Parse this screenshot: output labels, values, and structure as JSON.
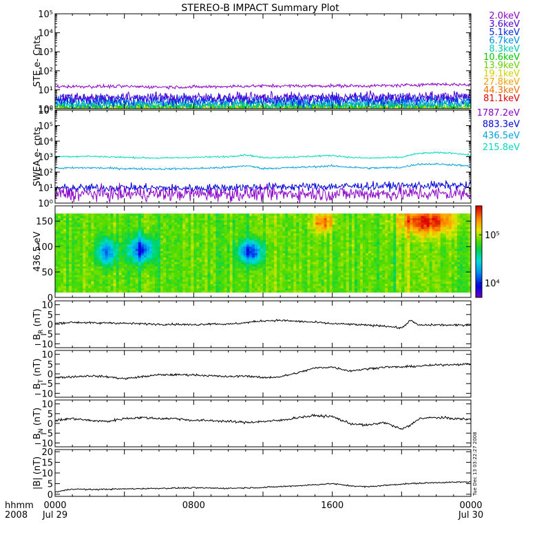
{
  "title": "STEREO-B IMPACT Summary Plot",
  "time_axis": {
    "label_line1": "hhmm",
    "label_line2": "2008",
    "ticks": [
      {
        "hours": 0,
        "label": "0000",
        "date": "Jul 29"
      },
      {
        "hours": 8,
        "label": "0800",
        "date": ""
      },
      {
        "hours": 16,
        "label": "1600",
        "date": ""
      },
      {
        "hours": 24,
        "label": "0000",
        "date": "Jul 30"
      }
    ]
  },
  "side_stamp": "Tue Dec 13 03:22:27 2008",
  "colors": {
    "ste": [
      "#8b00c8",
      "#5000d8",
      "#0028e0",
      "#0090e0",
      "#00c8b0",
      "#00c800",
      "#68d000",
      "#d0d000",
      "#f0a000",
      "#f07000",
      "#e00000"
    ],
    "swea": [
      "#8b00c8",
      "#0000d8",
      "#00a0e0",
      "#00d8c0"
    ]
  },
  "chart_data": [
    {
      "id": "ste",
      "type": "line",
      "ylabel": "STE e- Cnts",
      "yscale": "log",
      "ylim": [
        1,
        100000
      ],
      "yticks": [
        {
          "v": 1,
          "label": "10⁰"
        },
        {
          "v": 10,
          "label": "10¹"
        },
        {
          "v": 100,
          "label": "10²"
        },
        {
          "v": 1000,
          "label": "10³"
        },
        {
          "v": 10000,
          "label": "10⁴"
        },
        {
          "v": 100000,
          "label": "10⁵"
        }
      ],
      "legend": [
        "2.0keV",
        "3.6keV",
        "5.1keV",
        "6.7keV",
        "8.3keV",
        "10.6keV",
        "13.9keV",
        "19.1keV",
        "27.8keV",
        "44.3keV",
        "81.1keV"
      ],
      "series": [
        {
          "name": "2.0keV",
          "x": [
            0,
            2,
            4,
            6,
            8,
            10,
            12,
            14,
            16,
            18,
            20,
            22,
            24
          ],
          "y": [
            15,
            15,
            15,
            14,
            14,
            15,
            16,
            16,
            16,
            16,
            17,
            20,
            18
          ],
          "noise": 0.08
        },
        {
          "name": "3.6keV",
          "x": [
            0,
            4,
            8,
            12,
            16,
            20,
            24
          ],
          "y": [
            4,
            4,
            3.8,
            4,
            4,
            4.2,
            4.5
          ],
          "noise": 0.25
        },
        {
          "name": "5.1keV",
          "x": [
            0,
            4,
            8,
            12,
            16,
            20,
            24
          ],
          "y": [
            3,
            3,
            3,
            3,
            3,
            3.2,
            3.5
          ],
          "noise": 0.3
        },
        {
          "name": "6.7keV",
          "x": [
            0,
            4,
            8,
            12,
            16,
            20,
            24
          ],
          "y": [
            2.2,
            2.2,
            2.1,
            2.2,
            2.2,
            2.3,
            2.4
          ],
          "noise": 0.3
        },
        {
          "name": "8.3keV",
          "x": [
            0,
            12,
            24
          ],
          "y": [
            1.7,
            1.7,
            1.8
          ],
          "noise": 0.25
        },
        {
          "name": "10.6keV",
          "x": [
            0,
            12,
            24
          ],
          "y": [
            1.4,
            1.4,
            1.5
          ],
          "noise": 0.2
        },
        {
          "name": "13.9keV",
          "x": [
            0,
            12,
            24
          ],
          "y": [
            1.2,
            1.2,
            1.2
          ],
          "noise": 0.15
        },
        {
          "name": "19.1keV",
          "x": [
            0,
            12,
            24
          ],
          "y": [
            1.1,
            1.1,
            1.1
          ],
          "noise": 0.1
        },
        {
          "name": "27.8keV",
          "x": [
            0,
            12,
            24
          ],
          "y": [
            1.05,
            1.05,
            1.05
          ],
          "noise": 0.05
        },
        {
          "name": "44.3keV",
          "x": [
            0,
            12,
            24
          ],
          "y": [
            1.02,
            1.02,
            1.02
          ],
          "noise": 0.03
        },
        {
          "name": "81.1keV",
          "x": [
            0,
            12,
            24
          ],
          "y": [
            1.0,
            1.0,
            1.0
          ],
          "noise": 0.02
        }
      ]
    },
    {
      "id": "swea",
      "type": "line",
      "ylabel": "SWEA e- cnts",
      "yscale": "log",
      "ylim": [
        1,
        1000000
      ],
      "yticks": [
        {
          "v": 1,
          "label": "10⁰"
        },
        {
          "v": 10,
          "label": "10¹"
        },
        {
          "v": 100,
          "label": "10²"
        },
        {
          "v": 1000,
          "label": "10³"
        },
        {
          "v": 10000,
          "label": "10⁴"
        },
        {
          "v": 100000,
          "label": "10⁵"
        },
        {
          "v": 1000000,
          "label": "10⁶"
        }
      ],
      "legend": [
        "1787.2eV",
        "883.3eV",
        "436.5eV",
        "215.8eV"
      ],
      "series": [
        {
          "name": "1787.2eV",
          "x": [
            0,
            6,
            12,
            18,
            24
          ],
          "y": [
            4,
            4,
            4,
            4,
            4
          ],
          "noise": 0.45
        },
        {
          "name": "883.3eV",
          "x": [
            0,
            4,
            8,
            12,
            16,
            20,
            22,
            24
          ],
          "y": [
            9,
            10,
            9,
            11,
            12,
            13,
            14,
            13
          ],
          "noise": 0.25
        },
        {
          "name": "436.5eV",
          "x": [
            0,
            2,
            4,
            6,
            8,
            10,
            11,
            12,
            14,
            16,
            17,
            18,
            20,
            21,
            22,
            23,
            24
          ],
          "y": [
            180,
            190,
            170,
            160,
            170,
            200,
            260,
            170,
            200,
            250,
            210,
            180,
            200,
            330,
            330,
            300,
            230
          ],
          "noise": 0.06
        },
        {
          "name": "215.8eV",
          "x": [
            0,
            2,
            4,
            6,
            8,
            10,
            11,
            12,
            14,
            16,
            17,
            18,
            20,
            21,
            22,
            23,
            24
          ],
          "y": [
            1000,
            1050,
            900,
            800,
            900,
            1000,
            1300,
            850,
            950,
            1200,
            900,
            800,
            900,
            1600,
            1800,
            1700,
            1200
          ],
          "noise": 0.05
        }
      ]
    },
    {
      "id": "pad",
      "type": "heatmap",
      "ylabel": "436.5 eV",
      "ylim": [
        0,
        180
      ],
      "data_range": [
        10,
        165
      ],
      "yticks": [
        {
          "v": 0,
          "label": "0"
        },
        {
          "v": 50,
          "label": "50"
        },
        {
          "v": 100,
          "label": "100"
        },
        {
          "v": 150,
          "label": "150"
        }
      ],
      "colorbar": {
        "scale": "log",
        "range": [
          5000,
          400000
        ],
        "ticks": [
          {
            "v": 10000,
            "label": "10⁴"
          },
          {
            "v": 100000,
            "label": "10⁵"
          }
        ]
      },
      "base_level": 80000,
      "features": [
        {
          "t": 3,
          "angle": 90,
          "dt": 0.6,
          "da": 25,
          "level": 15000
        },
        {
          "t": 5,
          "angle": 95,
          "dt": 0.7,
          "da": 25,
          "level": 10000
        },
        {
          "t": 11.3,
          "angle": 90,
          "dt": 0.7,
          "da": 22,
          "level": 10000
        },
        {
          "t": 21.5,
          "angle": 150,
          "dt": 1.6,
          "da": 25,
          "level": 350000
        },
        {
          "t": 15.5,
          "angle": 150,
          "dt": 0.6,
          "da": 20,
          "level": 250000
        }
      ]
    },
    {
      "id": "br",
      "type": "line",
      "ylabel": "BR (nT)",
      "ylabel_main": "B",
      "ylabel_sub": "R",
      "ylabel_rest": " (nT)",
      "ylim": [
        -12,
        12
      ],
      "yticks": [
        {
          "v": -10,
          "label": "−10"
        },
        {
          "v": -5,
          "label": "−5"
        },
        {
          "v": 0,
          "label": "0"
        },
        {
          "v": 5,
          "label": "5"
        },
        {
          "v": 10,
          "label": "10"
        }
      ],
      "series": [
        {
          "x": [
            0,
            1,
            2,
            2.5,
            3,
            4,
            6,
            7,
            8,
            9,
            10,
            11,
            12,
            13,
            14,
            15,
            16,
            17,
            18,
            19,
            20,
            20.5,
            21,
            22,
            23,
            24
          ],
          "y": [
            0.5,
            1.0,
            0.8,
            0.5,
            0.8,
            0.5,
            0,
            0,
            -0.3,
            0.3,
            0,
            0.8,
            1.8,
            2.0,
            1.5,
            1.0,
            0.3,
            0,
            -0.5,
            -0.8,
            -2,
            2,
            -0.5,
            -0.3,
            -0.5,
            -0.3
          ],
          "noise": 0.25
        }
      ]
    },
    {
      "id": "bt",
      "type": "line",
      "ylabel": "BT (nT)",
      "ylabel_main": "B",
      "ylabel_sub": "T",
      "ylabel_rest": " (nT)",
      "ylim": [
        -12,
        12
      ],
      "yticks": [
        {
          "v": -10,
          "label": "−10"
        },
        {
          "v": -5,
          "label": "−5"
        },
        {
          "v": 0,
          "label": "0"
        },
        {
          "v": 5,
          "label": "5"
        },
        {
          "v": 10,
          "label": "10"
        }
      ],
      "series": [
        {
          "x": [
            0,
            1,
            2,
            3,
            4,
            5,
            6,
            7,
            8,
            9,
            10,
            11,
            12,
            13,
            14,
            15,
            16,
            17,
            18,
            19,
            20,
            21,
            22,
            23,
            24
          ],
          "y": [
            -2,
            -1.5,
            -1,
            -1.5,
            -2.5,
            -1.5,
            -0.5,
            -0.5,
            -0.5,
            -1,
            -1.5,
            -1,
            -2,
            -1.5,
            0.5,
            3,
            3.5,
            1.5,
            2.5,
            3.5,
            3.5,
            4,
            4.5,
            4.8,
            5
          ],
          "noise": 0.25
        }
      ]
    },
    {
      "id": "bn",
      "type": "line",
      "ylabel": "BN (nT)",
      "ylabel_main": "B",
      "ylabel_sub": "N",
      "ylabel_rest": " (nT)",
      "ylim": [
        -12,
        12
      ],
      "yticks": [
        {
          "v": -10,
          "label": "−10"
        },
        {
          "v": -5,
          "label": "−5"
        },
        {
          "v": 0,
          "label": "0"
        },
        {
          "v": 5,
          "label": "5"
        },
        {
          "v": 10,
          "label": "10"
        }
      ],
      "series": [
        {
          "x": [
            0,
            1,
            2,
            3,
            4,
            5,
            6,
            7,
            8,
            9,
            10,
            11,
            12,
            13,
            14,
            15,
            16,
            17,
            18,
            19,
            20,
            20.5,
            21,
            22,
            23,
            24
          ],
          "y": [
            1.5,
            2.5,
            1.5,
            1,
            2.5,
            3,
            2.5,
            2.5,
            1.5,
            1.5,
            1,
            0.5,
            1,
            1.5,
            3,
            4,
            3.5,
            0,
            -1,
            0.5,
            -3,
            -1,
            2.5,
            3,
            2.5,
            2
          ],
          "noise": 0.3
        }
      ]
    },
    {
      "id": "bmag",
      "type": "line",
      "ylabel": "|B| (nT)",
      "ylim": [
        -1,
        21
      ],
      "yticks": [
        {
          "v": 0,
          "label": "0"
        },
        {
          "v": 5,
          "label": "5"
        },
        {
          "v": 10,
          "label": "10"
        },
        {
          "v": 15,
          "label": "15"
        },
        {
          "v": 20,
          "label": "20"
        }
      ],
      "series": [
        {
          "x": [
            0,
            1,
            2,
            4,
            6,
            8,
            10,
            12,
            14,
            16,
            17,
            18,
            20,
            22,
            24
          ],
          "y": [
            1,
            2.5,
            2.2,
            2.5,
            2.8,
            3,
            2.8,
            3.2,
            4,
            5,
            4,
            3.5,
            4.8,
            5.5,
            5.8
          ],
          "noise": 0.15
        }
      ]
    }
  ]
}
